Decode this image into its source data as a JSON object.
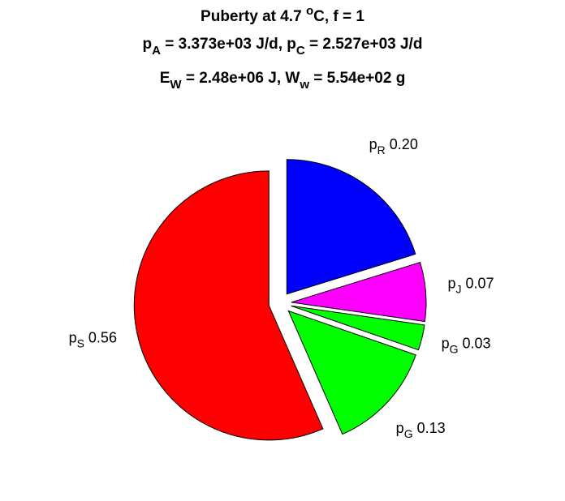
{
  "chart_data": {
    "type": "pie",
    "title": [
      [
        {
          "text": "Puberty at 4.7 "
        },
        {
          "text": "o",
          "style": "sup"
        },
        {
          "text": "C, f = 1"
        }
      ],
      [
        {
          "text": "p"
        },
        {
          "text": "A",
          "style": "sub"
        },
        {
          "text": " = 3.373e+03 J/d,  p"
        },
        {
          "text": "C",
          "style": "sub"
        },
        {
          "text": " = 2.527e+03 J/d"
        }
      ],
      [
        {
          "text": "E"
        },
        {
          "text": "W",
          "style": "sub"
        },
        {
          "text": " = 2.48e+06 J, W"
        },
        {
          "text": "w",
          "style": "sub"
        },
        {
          "text": " = 5.54e+02 g"
        }
      ]
    ],
    "categories": [
      {
        "main": "p",
        "sub": "R"
      },
      {
        "main": "p",
        "sub": "J"
      },
      {
        "main": "p",
        "sub": "G"
      },
      {
        "main": "p",
        "sub": "G"
      },
      {
        "main": "p",
        "sub": "S"
      }
    ],
    "values": [
      0.2,
      0.07,
      0.03,
      0.13,
      0.56
    ],
    "value_labels": [
      "0.20",
      "0.07",
      "0.03",
      "0.13",
      "0.56"
    ],
    "colors": [
      "#0000ff",
      "#ff00ff",
      "#00ff00",
      "#00ff00",
      "#ff0000"
    ],
    "explode": true,
    "direction": "clockwise"
  }
}
